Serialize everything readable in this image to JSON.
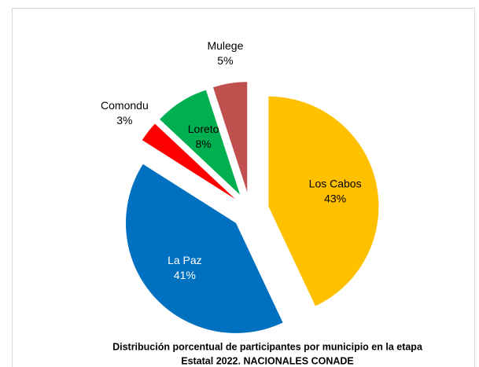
{
  "chart_data": {
    "type": "pie",
    "title": [
      "Distribución porcentual de participantes por municipio en la etapa",
      "Estatal 2022. NACIONALES CONADE"
    ],
    "categories": [
      "Los Cabos",
      "La Paz",
      "Comondu",
      "Loreto",
      "Mulege"
    ],
    "values": [
      43,
      41,
      3,
      8,
      5
    ],
    "value_labels": [
      "43%",
      "41%",
      "3%",
      "8%",
      "5%"
    ],
    "colors": [
      "#ffc000",
      "#0070c0",
      "#ff0000",
      "#00b050",
      "#c0504d"
    ]
  }
}
